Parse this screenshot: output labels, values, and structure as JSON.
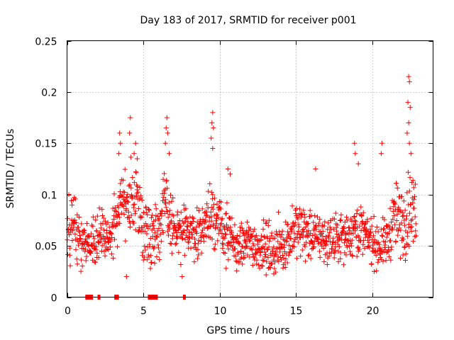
{
  "chart_data": {
    "type": "scatter",
    "title": "Day 183 of 2017, SRMTID for receiver p001",
    "xlabel": "GPS time / hours",
    "ylabel": "SRMTID / TECUs",
    "xlim": [
      0,
      24
    ],
    "ylim": [
      0,
      0.25
    ],
    "xticks": [
      0,
      5,
      10,
      15,
      20
    ],
    "xtick_labels": [
      "0",
      "5",
      "10",
      "15",
      "20"
    ],
    "yticks": [
      0,
      0.05,
      0.1,
      0.15,
      0.2,
      0.25
    ],
    "ytick_labels": [
      "0",
      "0.05",
      "0.1",
      "0.15",
      "0.2",
      "0.25"
    ],
    "grid": true,
    "marker": "+",
    "color": "#ff0000",
    "baseline_segments": [
      [
        1.2,
        1.7
      ],
      [
        2.0,
        2.15
      ],
      [
        3.1,
        3.4
      ],
      [
        5.3,
        5.95
      ],
      [
        7.6,
        7.75
      ]
    ],
    "envelope": [
      [
        0.0,
        0.06,
        0.03
      ],
      [
        0.5,
        0.07,
        0.03
      ],
      [
        1.0,
        0.055,
        0.02
      ],
      [
        1.5,
        0.05,
        0.015
      ],
      [
        2.0,
        0.06,
        0.025
      ],
      [
        2.5,
        0.055,
        0.02
      ],
      [
        3.0,
        0.06,
        0.02
      ],
      [
        3.5,
        0.1,
        0.03
      ],
      [
        4.0,
        0.085,
        0.03
      ],
      [
        4.5,
        0.1,
        0.03
      ],
      [
        5.0,
        0.07,
        0.03
      ],
      [
        5.5,
        0.06,
        0.025
      ],
      [
        6.0,
        0.07,
        0.03
      ],
      [
        6.5,
        0.09,
        0.03
      ],
      [
        7.0,
        0.065,
        0.025
      ],
      [
        7.5,
        0.06,
        0.02
      ],
      [
        8.0,
        0.065,
        0.02
      ],
      [
        8.5,
        0.06,
        0.02
      ],
      [
        9.0,
        0.07,
        0.025
      ],
      [
        9.5,
        0.085,
        0.03
      ],
      [
        10.0,
        0.07,
        0.025
      ],
      [
        10.5,
        0.06,
        0.025
      ],
      [
        11.0,
        0.05,
        0.02
      ],
      [
        11.5,
        0.05,
        0.02
      ],
      [
        12.0,
        0.055,
        0.02
      ],
      [
        12.5,
        0.05,
        0.02
      ],
      [
        13.0,
        0.05,
        0.02
      ],
      [
        13.5,
        0.045,
        0.02
      ],
      [
        14.0,
        0.05,
        0.025
      ],
      [
        14.5,
        0.055,
        0.02
      ],
      [
        15.0,
        0.065,
        0.025
      ],
      [
        15.5,
        0.065,
        0.025
      ],
      [
        16.0,
        0.06,
        0.02
      ],
      [
        16.5,
        0.06,
        0.02
      ],
      [
        17.0,
        0.055,
        0.02
      ],
      [
        17.5,
        0.055,
        0.02
      ],
      [
        18.0,
        0.06,
        0.02
      ],
      [
        18.5,
        0.06,
        0.02
      ],
      [
        19.0,
        0.07,
        0.025
      ],
      [
        19.5,
        0.06,
        0.02
      ],
      [
        20.0,
        0.055,
        0.02
      ],
      [
        20.5,
        0.05,
        0.02
      ],
      [
        21.0,
        0.055,
        0.02
      ],
      [
        21.5,
        0.08,
        0.03
      ],
      [
        22.0,
        0.07,
        0.03
      ],
      [
        22.5,
        0.09,
        0.035
      ],
      [
        22.9,
        0.08,
        0.03
      ]
    ],
    "outliers": [
      [
        22.4,
        0.215
      ],
      [
        22.45,
        0.21
      ],
      [
        22.35,
        0.19
      ],
      [
        22.5,
        0.185
      ],
      [
        22.4,
        0.17
      ],
      [
        22.3,
        0.16
      ],
      [
        22.45,
        0.15
      ],
      [
        22.55,
        0.14
      ],
      [
        9.55,
        0.18
      ],
      [
        9.5,
        0.17
      ],
      [
        9.6,
        0.165
      ],
      [
        9.45,
        0.155
      ],
      [
        9.55,
        0.145
      ],
      [
        6.55,
        0.175
      ],
      [
        6.5,
        0.165
      ],
      [
        6.6,
        0.16
      ],
      [
        6.45,
        0.15
      ],
      [
        6.7,
        0.14
      ],
      [
        4.15,
        0.175
      ],
      [
        4.1,
        0.16
      ],
      [
        3.45,
        0.16
      ],
      [
        3.5,
        0.15
      ],
      [
        3.4,
        0.14
      ],
      [
        4.5,
        0.15
      ],
      [
        4.4,
        0.14
      ],
      [
        4.6,
        0.135
      ],
      [
        18.85,
        0.15
      ],
      [
        18.9,
        0.14
      ],
      [
        19.1,
        0.13
      ],
      [
        20.65,
        0.15
      ],
      [
        20.6,
        0.14
      ],
      [
        16.3,
        0.125
      ],
      [
        10.55,
        0.125
      ],
      [
        10.7,
        0.12
      ],
      [
        3.9,
        0.02
      ],
      [
        7.55,
        0.02
      ]
    ]
  }
}
